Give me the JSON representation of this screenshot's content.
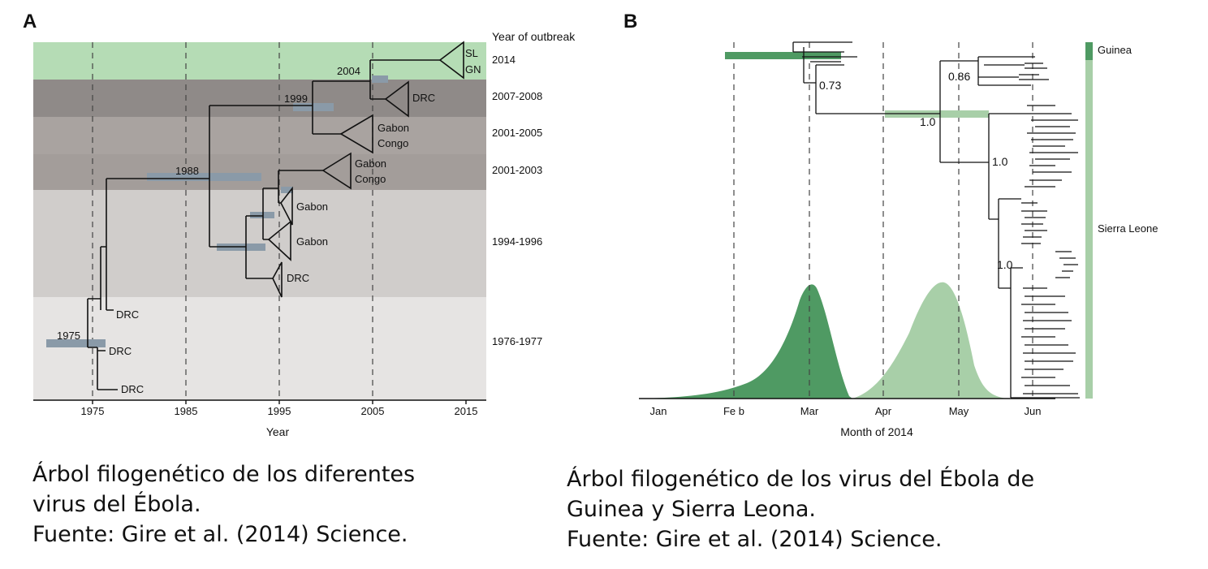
{
  "panel_a": {
    "letter": "A",
    "outbreak_header": "Year of outbreak",
    "outbreak_years": [
      "2014",
      "2007-2008",
      "2001-2005",
      "2001-2003",
      "1994-1996",
      "1976-1977"
    ],
    "x_ticks": [
      "1975",
      "1985",
      "1995",
      "2005",
      "2015"
    ],
    "x_label": "Year",
    "node_years": [
      "2004",
      "1999",
      "1988",
      "1975"
    ],
    "clade_labels": {
      "sl": "SL",
      "gn": "GN",
      "drc_2007": "DRC",
      "gabon_2001a": "Gabon",
      "congo_2001a": "Congo",
      "gabon_2001b": "Gabon",
      "congo_2001b": "Congo",
      "gabon_1994a": "Gabon",
      "gabon_1994b": "Gabon",
      "drc_1995": "DRC",
      "drc_1976a": "DRC",
      "drc_1976b": "DRC",
      "drc_1977": "DRC"
    },
    "band_colors": [
      "#b5dcb5",
      "#8f8a88",
      "#a9a3a0",
      "#a39d9a",
      "#d0cdcb",
      "#e6e4e3"
    ]
  },
  "panel_b": {
    "letter": "B",
    "x_ticks": [
      "Jan",
      "Fe b",
      "Mar",
      "Apr",
      "May",
      "Jun"
    ],
    "x_label": "Month of 2014",
    "support_values": [
      "0.73",
      "0.86",
      "1.0",
      "1.0",
      "1.0"
    ],
    "legend": [
      "Guinea",
      "Sierra Leone"
    ],
    "colors": {
      "guinea": "#4f9a63",
      "sierra_leone": "#a8cfa8"
    }
  },
  "captions": {
    "a": [
      "Árbol filogenético de los diferentes",
      "virus del Ébola.",
      "Fuente: Gire et al. (2014) Science."
    ],
    "b": [
      "Árbol filogenético de los virus del Ébola de",
      "Guinea y Sierra Leona.",
      "Fuente: Gire et al. (2014) Science."
    ]
  }
}
